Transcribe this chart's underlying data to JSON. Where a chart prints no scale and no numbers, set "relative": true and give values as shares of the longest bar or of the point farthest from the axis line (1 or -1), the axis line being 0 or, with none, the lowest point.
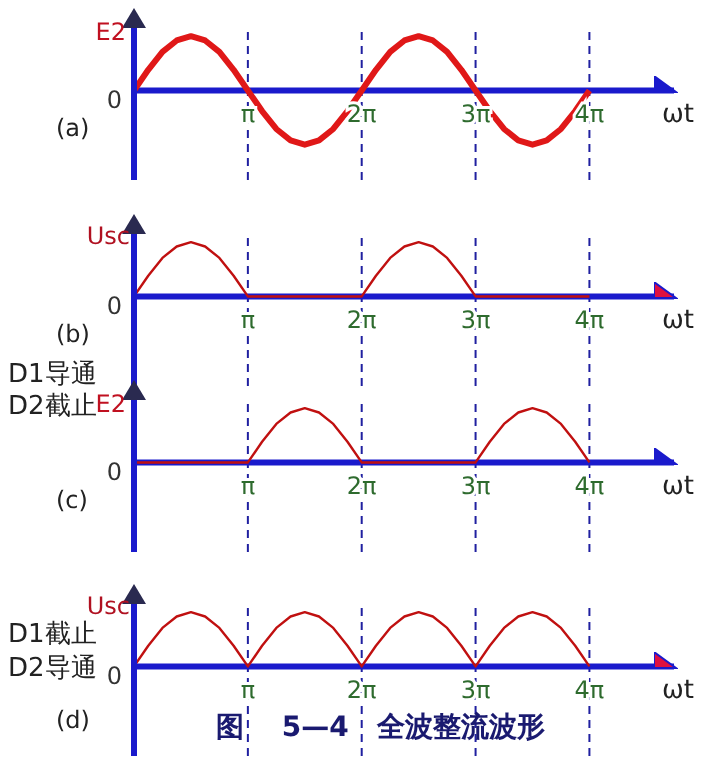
{
  "chart_data": [
    {
      "type": "line",
      "relative": true,
      "xlabel": "ωt",
      "x": [
        0,
        0.393,
        0.785,
        1.178,
        1.571,
        1.963,
        2.356,
        2.749,
        3.142,
        3.534,
        3.927,
        4.32,
        4.712,
        5.105,
        5.498,
        5.89,
        6.283,
        6.676,
        7.069,
        7.461,
        7.854,
        8.247,
        8.639,
        9.032,
        9.425,
        9.817,
        10.21,
        10.603,
        10.996,
        11.388,
        11.781,
        12.174,
        12.566
      ],
      "series": [
        {
          "color": "#e01818",
          "values": [
            0,
            0.38,
            0.71,
            0.92,
            1,
            0.92,
            0.71,
            0.38,
            0,
            -0.38,
            -0.71,
            -0.92,
            -1,
            -0.92,
            -0.71,
            -0.38,
            0,
            0.38,
            0.71,
            0.92,
            1,
            0.92,
            0.71,
            0.38,
            0,
            -0.38,
            -0.71,
            -0.92,
            -1,
            -0.92,
            -0.71,
            -0.38,
            0
          ]
        }
      ],
      "xlim": [
        0,
        14.9
      ],
      "xticks": [
        {
          "value": 3.142,
          "label": "π"
        },
        {
          "value": 6.283,
          "label": "2π"
        },
        {
          "value": 9.425,
          "label": "3π"
        },
        {
          "value": 12.566,
          "label": "4π"
        }
      ],
      "ref_lines": [
        {
          "axis": "x",
          "value": 3.142,
          "line_style": "dashed",
          "color": "#2020a0"
        },
        {
          "axis": "x",
          "value": 6.283,
          "line_style": "dashed",
          "color": "#2020a0"
        },
        {
          "axis": "x",
          "value": 9.425,
          "line_style": "dashed",
          "color": "#2020a0"
        },
        {
          "axis": "x",
          "value": 12.566,
          "line_style": "dashed",
          "color": "#2020a0"
        }
      ],
      "annotations": [
        "(a)",
        "0",
        "E2"
      ]
    },
    {
      "type": "line",
      "relative": true,
      "xlabel": "ωt",
      "ylabel": "Usc",
      "x": [
        0,
        0.393,
        0.785,
        1.178,
        1.571,
        1.963,
        2.356,
        2.749,
        3.142,
        3.534,
        3.927,
        4.32,
        4.712,
        5.105,
        5.498,
        5.89,
        6.283,
        6.676,
        7.069,
        7.461,
        7.854,
        8.247,
        8.639,
        9.032,
        9.425,
        9.817,
        10.21,
        10.603,
        10.996,
        11.388,
        11.781,
        12.174,
        12.566
      ],
      "series": [
        {
          "color": "#c01010",
          "values": [
            0,
            0.38,
            0.71,
            0.92,
            1,
            0.92,
            0.71,
            0.38,
            0,
            0,
            0,
            0,
            0,
            0,
            0,
            0,
            0,
            0.38,
            0.71,
            0.92,
            1,
            0.92,
            0.71,
            0.38,
            0,
            0,
            0,
            0,
            0,
            0,
            0,
            0,
            0
          ]
        }
      ],
      "xlim": [
        0,
        14.9
      ],
      "xticks": [
        {
          "value": 3.142,
          "label": "π"
        },
        {
          "value": 6.283,
          "label": "2π"
        },
        {
          "value": 9.425,
          "label": "3π"
        },
        {
          "value": 12.566,
          "label": "4π"
        }
      ],
      "ref_lines": [
        {
          "axis": "x",
          "value": 3.142,
          "line_style": "dashed",
          "color": "#2020a0"
        },
        {
          "axis": "x",
          "value": 6.283,
          "line_style": "dashed",
          "color": "#2020a0"
        },
        {
          "axis": "x",
          "value": 9.425,
          "line_style": "dashed",
          "color": "#2020a0"
        },
        {
          "axis": "x",
          "value": 12.566,
          "line_style": "dashed",
          "color": "#2020a0"
        }
      ],
      "annotations": [
        "(b)",
        "D1导通",
        "D2截止",
        "0"
      ]
    },
    {
      "type": "line",
      "relative": true,
      "xlabel": "ωt",
      "x": [
        0,
        0.393,
        0.785,
        1.178,
        1.571,
        1.963,
        2.356,
        2.749,
        3.142,
        3.534,
        3.927,
        4.32,
        4.712,
        5.105,
        5.498,
        5.89,
        6.283,
        6.676,
        7.069,
        7.461,
        7.854,
        8.247,
        8.639,
        9.032,
        9.425,
        9.817,
        10.21,
        10.603,
        10.996,
        11.388,
        11.781,
        12.174,
        12.566
      ],
      "series": [
        {
          "color": "#c01010",
          "values": [
            0,
            0,
            0,
            0,
            0,
            0,
            0,
            0,
            0,
            0.38,
            0.71,
            0.92,
            1,
            0.92,
            0.71,
            0.38,
            0,
            0,
            0,
            0,
            0,
            0,
            0,
            0,
            0,
            0.38,
            0.71,
            0.92,
            1,
            0.92,
            0.71,
            0.38,
            0
          ]
        }
      ],
      "xlim": [
        0,
        14.9
      ],
      "xticks": [
        {
          "value": 3.142,
          "label": "π"
        },
        {
          "value": 6.283,
          "label": "2π"
        },
        {
          "value": 9.425,
          "label": "3π"
        },
        {
          "value": 12.566,
          "label": "4π"
        }
      ],
      "ref_lines": [
        {
          "axis": "x",
          "value": 3.142,
          "line_style": "dashed",
          "color": "#2020a0"
        },
        {
          "axis": "x",
          "value": 6.283,
          "line_style": "dashed",
          "color": "#2020a0"
        },
        {
          "axis": "x",
          "value": 9.425,
          "line_style": "dashed",
          "color": "#2020a0"
        },
        {
          "axis": "x",
          "value": 12.566,
          "line_style": "dashed",
          "color": "#2020a0"
        }
      ],
      "annotations": [
        "(c)",
        "0",
        "E2"
      ]
    },
    {
      "type": "line",
      "relative": true,
      "title": "图　 5—4　全波整流波形",
      "xlabel": "ωt",
      "ylabel": "Usc",
      "x": [
        0,
        0.393,
        0.785,
        1.178,
        1.571,
        1.963,
        2.356,
        2.749,
        3.142,
        3.534,
        3.927,
        4.32,
        4.712,
        5.105,
        5.498,
        5.89,
        6.283,
        6.676,
        7.069,
        7.461,
        7.854,
        8.247,
        8.639,
        9.032,
        9.425,
        9.817,
        10.21,
        10.603,
        10.996,
        11.388,
        11.781,
        12.174,
        12.566
      ],
      "series": [
        {
          "color": "#c01010",
          "values": [
            0,
            0.38,
            0.71,
            0.92,
            1,
            0.92,
            0.71,
            0.38,
            0,
            0.38,
            0.71,
            0.92,
            1,
            0.92,
            0.71,
            0.38,
            0,
            0.38,
            0.71,
            0.92,
            1,
            0.92,
            0.71,
            0.38,
            0,
            0.38,
            0.71,
            0.92,
            1,
            0.92,
            0.71,
            0.38,
            0
          ]
        }
      ],
      "xlim": [
        0,
        14.9
      ],
      "xticks": [
        {
          "value": 3.142,
          "label": "π"
        },
        {
          "value": 6.283,
          "label": "2π"
        },
        {
          "value": 9.425,
          "label": "3π"
        },
        {
          "value": 12.566,
          "label": "4π"
        }
      ],
      "ref_lines": [
        {
          "axis": "x",
          "value": 3.142,
          "line_style": "dashed",
          "color": "#2020a0"
        },
        {
          "axis": "x",
          "value": 6.283,
          "line_style": "dashed",
          "color": "#2020a0"
        },
        {
          "axis": "x",
          "value": 9.425,
          "line_style": "dashed",
          "color": "#2020a0"
        },
        {
          "axis": "x",
          "value": 12.566,
          "line_style": "dashed",
          "color": "#2020a0"
        }
      ],
      "annotations": [
        "(d)",
        "D1截止",
        "D2导通",
        "0"
      ]
    }
  ]
}
